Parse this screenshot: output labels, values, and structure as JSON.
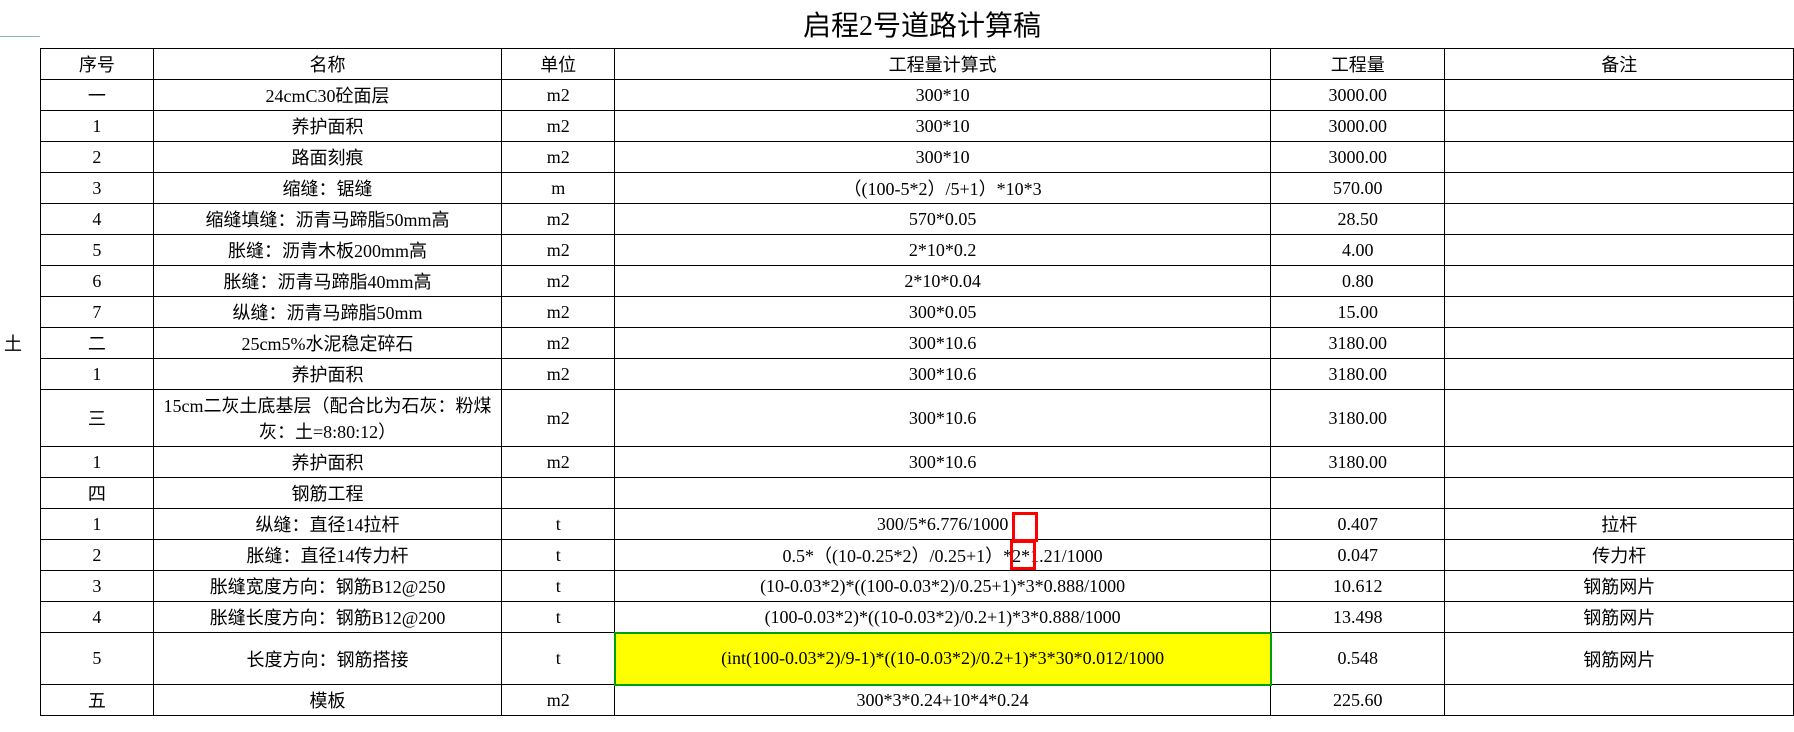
{
  "title": "启程2号道路计算稿",
  "sidebar_label": "土",
  "headers": {
    "serial": "序号",
    "name": "名称",
    "unit": "单位",
    "formula": "工程量计算式",
    "quantity": "工程量",
    "remark": "备注"
  },
  "rows": [
    {
      "serial": "一",
      "name": "24cmC30砼面层",
      "unit": "m2",
      "formula": "300*10",
      "quantity": "3000.00",
      "remark": ""
    },
    {
      "serial": "1",
      "name": "养护面积",
      "unit": "m2",
      "formula": "300*10",
      "quantity": "3000.00",
      "remark": ""
    },
    {
      "serial": "2",
      "name": "路面刻痕",
      "unit": "m2",
      "formula": "300*10",
      "quantity": "3000.00",
      "remark": ""
    },
    {
      "serial": "3",
      "name": "缩缝：锯缝",
      "unit": "m",
      "formula": "（(100-5*2）/5+1）*10*3",
      "quantity": "570.00",
      "remark": ""
    },
    {
      "serial": "4",
      "name": "缩缝填缝：沥青马蹄脂50mm高",
      "unit": "m2",
      "formula": "570*0.05",
      "quantity": "28.50",
      "remark": ""
    },
    {
      "serial": "5",
      "name": "胀缝：沥青木板200mm高",
      "unit": "m2",
      "formula": "2*10*0.2",
      "quantity": "4.00",
      "remark": ""
    },
    {
      "serial": "6",
      "name": "胀缝：沥青马蹄脂40mm高",
      "unit": "m2",
      "formula": "2*10*0.04",
      "quantity": "0.80",
      "remark": ""
    },
    {
      "serial": "7",
      "name": "纵缝：沥青马蹄脂50mm",
      "unit": "m2",
      "formula": "300*0.05",
      "quantity": "15.00",
      "remark": ""
    },
    {
      "serial": "二",
      "name": "25cm5%水泥稳定碎石",
      "unit": "m2",
      "formula": "300*10.6",
      "quantity": "3180.00",
      "remark": ""
    },
    {
      "serial": "1",
      "name": "养护面积",
      "unit": "m2",
      "formula": "300*10.6",
      "quantity": "3180.00",
      "remark": ""
    },
    {
      "serial": "三",
      "name": "15cm二灰土底基层（配合比为石灰：粉煤灰：土=8:80:12）",
      "unit": "m2",
      "formula": "300*10.6",
      "quantity": "3180.00",
      "remark": "",
      "tall": true
    },
    {
      "serial": "1",
      "name": "养护面积",
      "unit": "m2",
      "formula": "300*10.6",
      "quantity": "3180.00",
      "remark": ""
    },
    {
      "serial": "四",
      "name": "钢筋工程",
      "unit": "",
      "formula": "",
      "quantity": "",
      "remark": ""
    },
    {
      "serial": "1",
      "name": "纵缝：直径14拉杆",
      "unit": "t",
      "formula": "300/5*6.776/1000",
      "quantity": "0.407",
      "remark": "拉杆"
    },
    {
      "serial": "2",
      "name": "胀缝：直径14传力杆",
      "unit": "t",
      "formula": "0.5*（(10-0.25*2）/0.25+1）*2*1.21/1000",
      "quantity": "0.047",
      "remark": "传力杆"
    },
    {
      "serial": "3",
      "name": "胀缝宽度方向：钢筋B12@250",
      "unit": "t",
      "formula": "(10-0.03*2)*((100-0.03*2)/0.25+1)*3*0.888/1000",
      "quantity": "10.612",
      "remark": "钢筋网片"
    },
    {
      "serial": "4",
      "name": "胀缝长度方向：钢筋B12@200",
      "unit": "t",
      "formula": "(100-0.03*2)*((10-0.03*2)/0.2+1)*3*0.888/1000",
      "quantity": "13.498",
      "remark": "钢筋网片"
    },
    {
      "serial": "5",
      "name": "长度方向：钢筋搭接",
      "unit": "t",
      "formula": "(int(100-0.03*2)/9-1)*((10-0.03*2)/0.2+1)*3*30*0.012/1000",
      "quantity": "0.548",
      "remark": "钢筋网片",
      "highlight": true,
      "tall": true
    },
    {
      "serial": "五",
      "name": "模板",
      "unit": "m2",
      "formula": "300*3*0.24+10*4*0.24",
      "quantity": "225.60",
      "remark": ""
    }
  ],
  "styling": {
    "title_fontsize": 28,
    "cell_fontsize": 18,
    "border_color": "#000000",
    "background_color": "#ffffff",
    "highlight_color": "#ffff00",
    "highlight_border": "#00a000",
    "redbox_color": "#ff0000",
    "page_edge_color": "#8bb8a8",
    "font_family": "SimSun"
  }
}
